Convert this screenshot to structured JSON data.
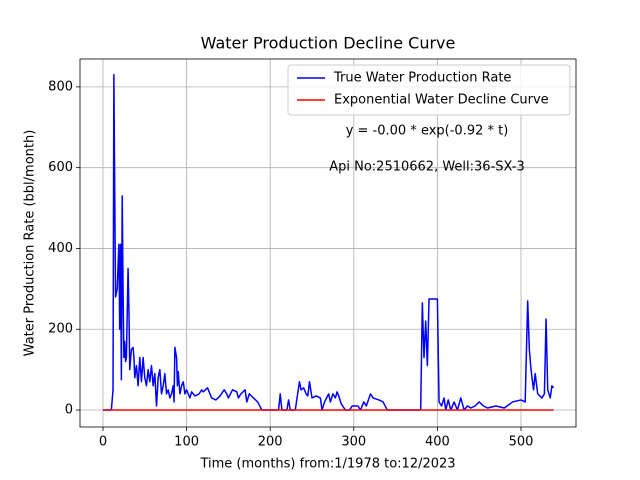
{
  "chart_data": {
    "type": "line",
    "title": "Water Production Decline Curve",
    "xlabel": "Time (months) from:1/1978 to:12/2023",
    "ylabel": "Water Production Rate (bbl/month)",
    "annotations": [
      "y = -0.00 * exp(-0.92 * t)",
      "Api No:2510662, Well:36-SX-3"
    ],
    "xlim": [
      -27.5,
      565.8
    ],
    "ylim": [
      -42,
      869
    ],
    "xticks": [
      0,
      100,
      200,
      300,
      400,
      500
    ],
    "yticks": [
      0,
      200,
      400,
      600,
      800
    ],
    "grid": true,
    "legend": "upper right",
    "series": [
      {
        "name": "True Water Production Rate",
        "color": "#0000ff",
        "x": [
          0,
          10,
          12,
          13,
          15,
          17,
          19,
          20,
          21,
          22,
          23,
          24,
          25,
          26,
          27,
          28,
          30,
          31,
          32,
          34,
          36,
          37,
          38,
          40,
          42,
          44,
          46,
          48,
          50,
          52,
          54,
          56,
          58,
          60,
          62,
          64,
          66,
          68,
          70,
          72,
          74,
          76,
          78,
          80,
          82,
          84,
          85,
          86,
          88,
          89,
          90,
          92,
          94,
          96,
          98,
          100,
          102,
          104,
          106,
          108,
          110,
          115,
          118,
          120,
          125,
          128,
          130,
          135,
          140,
          145,
          148,
          150,
          155,
          160,
          162,
          165,
          170,
          172,
          175,
          180,
          185,
          190,
          200,
          210,
          212,
          214,
          220,
          222,
          224,
          230,
          235,
          237,
          240,
          243,
          245,
          247,
          250,
          255,
          260,
          262,
          265,
          270,
          272,
          275,
          278,
          280,
          282,
          285,
          290,
          295,
          298,
          305,
          308,
          312,
          315,
          320,
          323,
          330,
          335,
          340,
          380,
          382,
          384,
          386,
          388,
          390,
          400,
          402,
          405,
          408,
          410,
          413,
          416,
          420,
          424,
          428,
          432,
          436,
          440,
          445,
          450,
          455,
          460,
          470,
          480,
          490,
          500,
          505,
          508,
          510,
          512,
          515,
          517,
          520,
          525,
          528,
          530,
          532,
          535,
          537,
          539
        ],
        "values": [
          0,
          0,
          50,
          830,
          280,
          300,
          410,
          200,
          410,
          75,
          530,
          300,
          130,
          170,
          120,
          130,
          350,
          250,
          100,
          150,
          155,
          130,
          80,
          110,
          60,
          130,
          70,
          130,
          80,
          60,
          100,
          70,
          110,
          60,
          90,
          10,
          80,
          100,
          40,
          60,
          90,
          40,
          50,
          30,
          40,
          60,
          20,
          155,
          130,
          60,
          95,
          40,
          60,
          70,
          40,
          50,
          40,
          30,
          45,
          40,
          35,
          40,
          50,
          45,
          55,
          40,
          30,
          25,
          35,
          50,
          40,
          30,
          50,
          45,
          30,
          40,
          50,
          20,
          40,
          30,
          20,
          0,
          0,
          0,
          40,
          0,
          0,
          25,
          0,
          0,
          70,
          50,
          55,
          40,
          35,
          70,
          30,
          35,
          30,
          0,
          20,
          40,
          20,
          40,
          30,
          45,
          35,
          15,
          0,
          0,
          10,
          10,
          0,
          20,
          10,
          40,
          30,
          25,
          20,
          0,
          0,
          265,
          130,
          220,
          110,
          275,
          275,
          20,
          10,
          30,
          0,
          25,
          0,
          20,
          0,
          30,
          0,
          10,
          5,
          10,
          20,
          10,
          5,
          10,
          5,
          20,
          25,
          20,
          270,
          150,
          100,
          50,
          90,
          40,
          30,
          40,
          225,
          50,
          30,
          60,
          55
        ]
      },
      {
        "name": "Exponential Water Decline Curve",
        "color": "#ff0000",
        "x": [
          0,
          539
        ],
        "values": [
          0,
          0
        ]
      }
    ]
  }
}
